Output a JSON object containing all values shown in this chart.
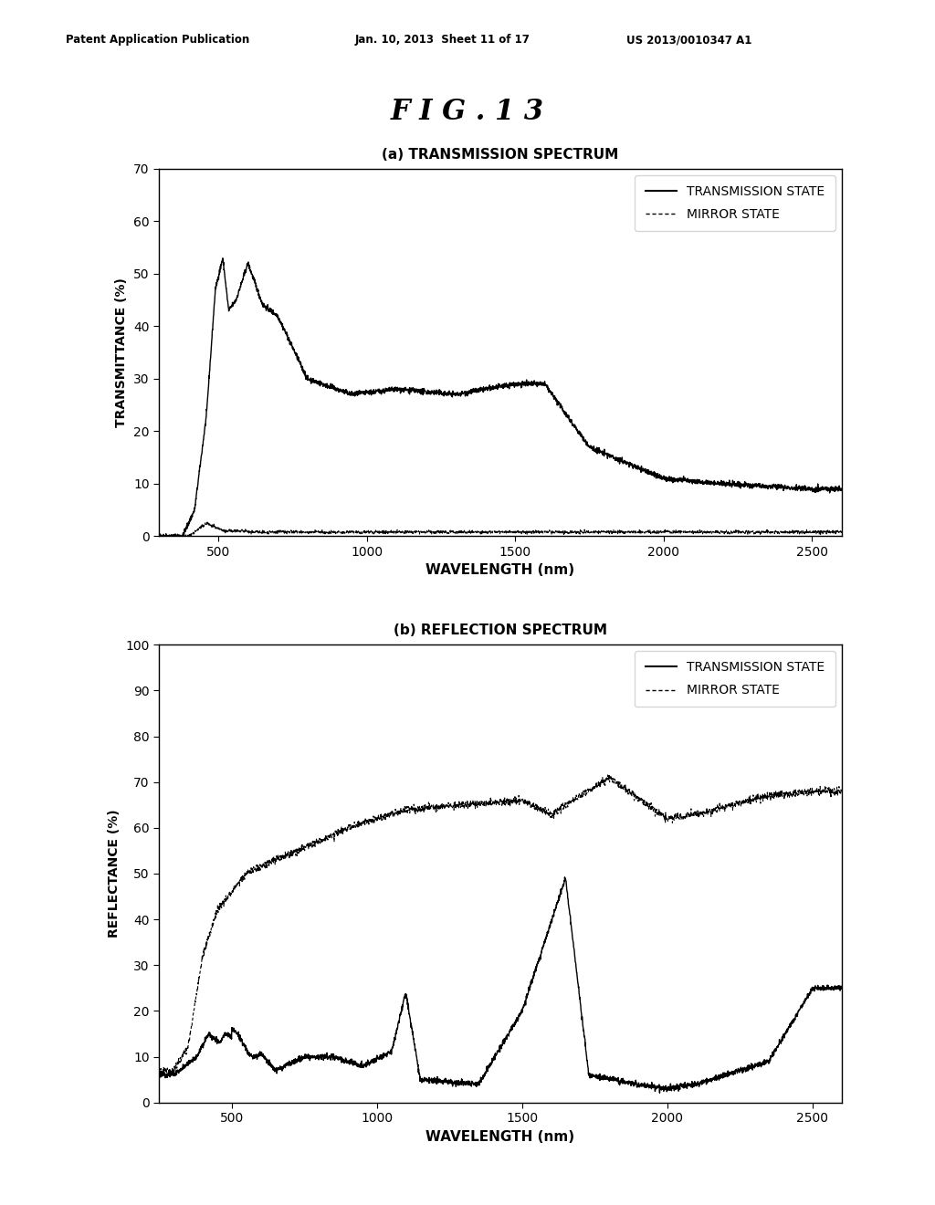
{
  "fig_title": "F I G . 1 3",
  "patent_line1": "Patent Application Publication",
  "patent_line2": "Jan. 10, 2013  Sheet 11 of 17",
  "patent_line3": "US 2013/0010347 A1",
  "plot_a_title": "(a) TRANSMISSION SPECTRUM",
  "plot_b_title": "(b) REFLECTION SPECTRUM",
  "xlabel": "WAVELENGTH (nm)",
  "ylabel_a": "TRANSMITTANCE (%)",
  "ylabel_b": "REFLECTANCE (%)",
  "legend_solid": "TRANSMISSION STATE",
  "legend_dotted": "MIRROR STATE",
  "xlim_a": [
    300,
    2600
  ],
  "xlim_b": [
    250,
    2600
  ],
  "xticks_a": [
    500,
    1000,
    1500,
    2000,
    2500
  ],
  "xticks_b": [
    500,
    1000,
    1500,
    2000,
    2500
  ],
  "ylim_a": [
    0,
    70
  ],
  "yticks_a": [
    0,
    10,
    20,
    30,
    40,
    50,
    60,
    70
  ],
  "ylim_b": [
    0,
    100
  ],
  "yticks_b": [
    0,
    10,
    20,
    30,
    40,
    50,
    60,
    70,
    80,
    90,
    100
  ],
  "background_color": "#ffffff",
  "line_color": "#000000"
}
